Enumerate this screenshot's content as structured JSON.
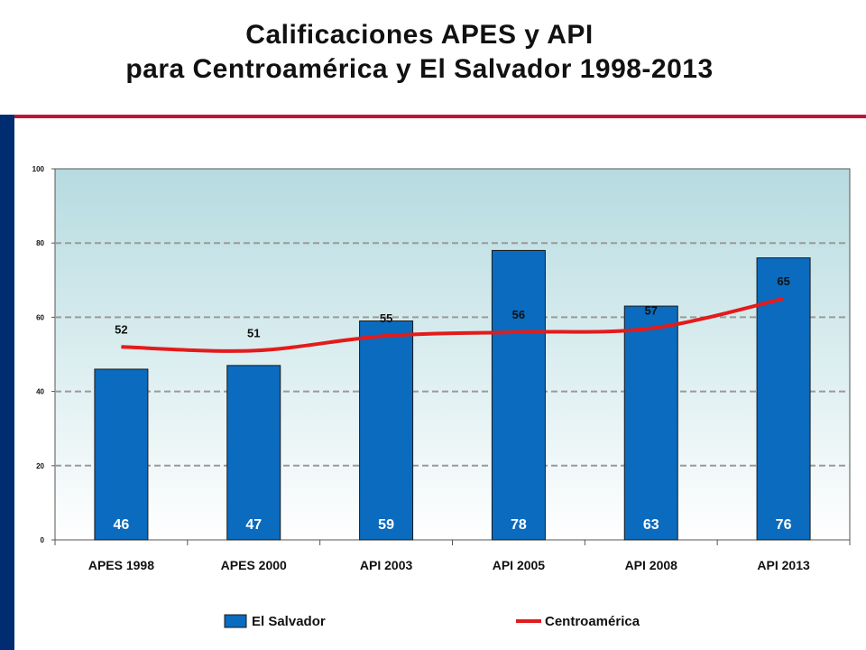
{
  "title_line1": "Calificaciones APES y API",
  "title_line2": "para Centroamérica y El Salvador 1998-2013",
  "colors": {
    "accent_red": "#c0143c",
    "side_blue": "#002d72",
    "bar": "#0a6bbf",
    "line": "#e31b1b",
    "bg_top": "#b6dbe0"
  },
  "chart_data": {
    "type": "bar",
    "title": "Calificaciones APES y API para Centroamérica y El Salvador 1998-2013",
    "categories": [
      "APES 1998",
      "APES 2000",
      "API 2003",
      "API 2005",
      "API 2008",
      "API 2013"
    ],
    "series": [
      {
        "name": "El Salvador",
        "type": "bar",
        "values": [
          46,
          47,
          59,
          78,
          63,
          76
        ],
        "color": "#0a6bbf"
      },
      {
        "name": "Centroamérica",
        "type": "line",
        "values": [
          52,
          51,
          55,
          56,
          57,
          65
        ],
        "color": "#e31b1b"
      }
    ],
    "yticks": [
      "0",
      "20",
      "40",
      "60",
      "80",
      "100"
    ],
    "ylim": [
      0,
      100
    ],
    "grid": true,
    "legend": "bottom"
  }
}
